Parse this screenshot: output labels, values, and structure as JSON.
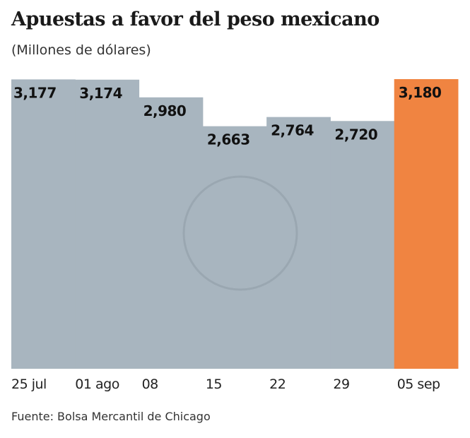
{
  "title": "Apuestas a favor del peso mexicano",
  "subtitle": "(Millones de dólares)",
  "source": "Fuente: Bolsa Mercantil de Chicago",
  "chart_data": {
    "type": "bar",
    "title": "Apuestas a favor del peso mexicano",
    "subtitle": "(Millones de dólares)",
    "categories": [
      "25 jul",
      "01 ago",
      "08",
      "15",
      "22",
      "29",
      "05 sep"
    ],
    "values": [
      3177,
      3174,
      2980,
      2663,
      2764,
      2720,
      3180
    ],
    "value_labels": [
      "3,177",
      "3,174",
      "2,980",
      "2,663",
      "2,764",
      "2,720",
      "3,180"
    ],
    "ylim": [
      0,
      3180
    ],
    "grid": false,
    "colors": {
      "default": "#a8b5bf",
      "highlight": "#f08441"
    },
    "highlight_index": 6
  }
}
